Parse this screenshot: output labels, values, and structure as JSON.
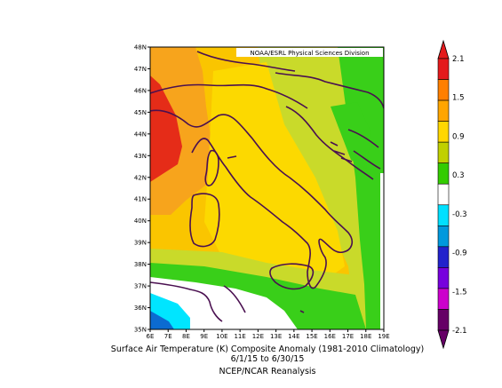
{
  "credit": "NOAA/ESRL Physical Sciences Division",
  "caption": {
    "line1": "Surface Air Temperature (K) Composite Anomaly (1981-2010 Climatology)",
    "line2": "6/1/15  to 6/30/15",
    "line3": "NCEP/NCAR Reanalysis"
  },
  "axes": {
    "lat_labels": [
      "48N",
      "47N",
      "46N",
      "45N",
      "44N",
      "43N",
      "42N",
      "41N",
      "40N",
      "39N",
      "38N",
      "37N",
      "36N",
      "35N"
    ],
    "lon_labels": [
      "6E",
      "7E",
      "8E",
      "9E",
      "10E",
      "11E",
      "12E",
      "13E",
      "14E",
      "15E",
      "16E",
      "17E",
      "18E",
      "19E"
    ]
  },
  "colorbar": {
    "labels": [
      "2.1",
      "1.5",
      "0.9",
      "0.3",
      "-0.3",
      "-0.9",
      "-1.5",
      "-2.1"
    ],
    "colors": [
      "#e41a1c",
      "#ff7f00",
      "#ffa500",
      "#ffd700",
      "#c0d000",
      "#33cc00",
      "#ffffff",
      "#00e0ff",
      "#0099dd",
      "#2222cc",
      "#7700dd",
      "#cc00cc",
      "#660066"
    ]
  },
  "legend_colors": {
    "red": "#e52c18",
    "orange": "#f7a41c",
    "gold": "#fac500",
    "yellow": "#fcd900",
    "yellowgreen": "#c9da2a",
    "green": "#39cf19",
    "white": "#ffffff",
    "cyan": "#00e5ff",
    "blue": "#0c6bd1"
  }
}
